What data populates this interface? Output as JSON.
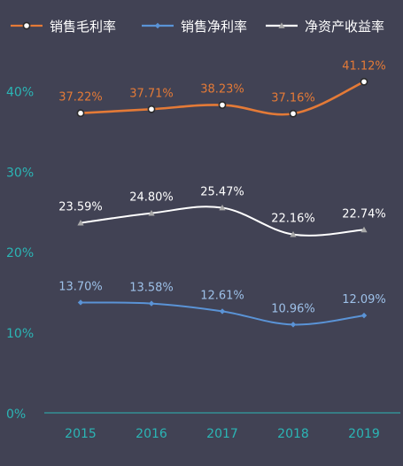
{
  "chart_data": {
    "type": "line",
    "title": "",
    "xlabel": "",
    "ylabel": "",
    "categories": [
      "2015",
      "2016",
      "2017",
      "2018",
      "2019"
    ],
    "ylim": [
      0,
      45
    ],
    "yticks": [
      0,
      10,
      20,
      30,
      40
    ],
    "ytick_labels": [
      "0%",
      "10%",
      "20%",
      "30%",
      "40%"
    ],
    "grid": false,
    "smooth": true,
    "legend_position": "top",
    "series": [
      {
        "name": "销售毛利率",
        "values": [
          37.22,
          37.71,
          38.23,
          37.16,
          41.12
        ],
        "labels": [
          "37.22%",
          "37.71%",
          "38.23%",
          "37.16%",
          "41.12%"
        ],
        "color": "#E47A37",
        "label_color": "#E47A37",
        "marker": "circle"
      },
      {
        "name": "销售净利率",
        "values": [
          13.7,
          13.58,
          12.61,
          10.96,
          12.09
        ],
        "labels": [
          "13.70%",
          "13.58%",
          "12.61%",
          "10.96%",
          "12.09%"
        ],
        "color": "#5A93D6",
        "label_color": "#9DC0E8",
        "marker": "diamond"
      },
      {
        "name": "净资产收益率",
        "values": [
          23.59,
          24.8,
          25.47,
          22.16,
          22.74
        ],
        "labels": [
          "23.59%",
          "24.80%",
          "25.47%",
          "22.16%",
          "22.74%"
        ],
        "color": "#FFFFFF",
        "label_color": "#FFFFFF",
        "marker": "triangle"
      }
    ],
    "colors": {
      "background": "#414254",
      "axis": "#2BB5B5",
      "tick_label": "#2BB5B5"
    }
  }
}
